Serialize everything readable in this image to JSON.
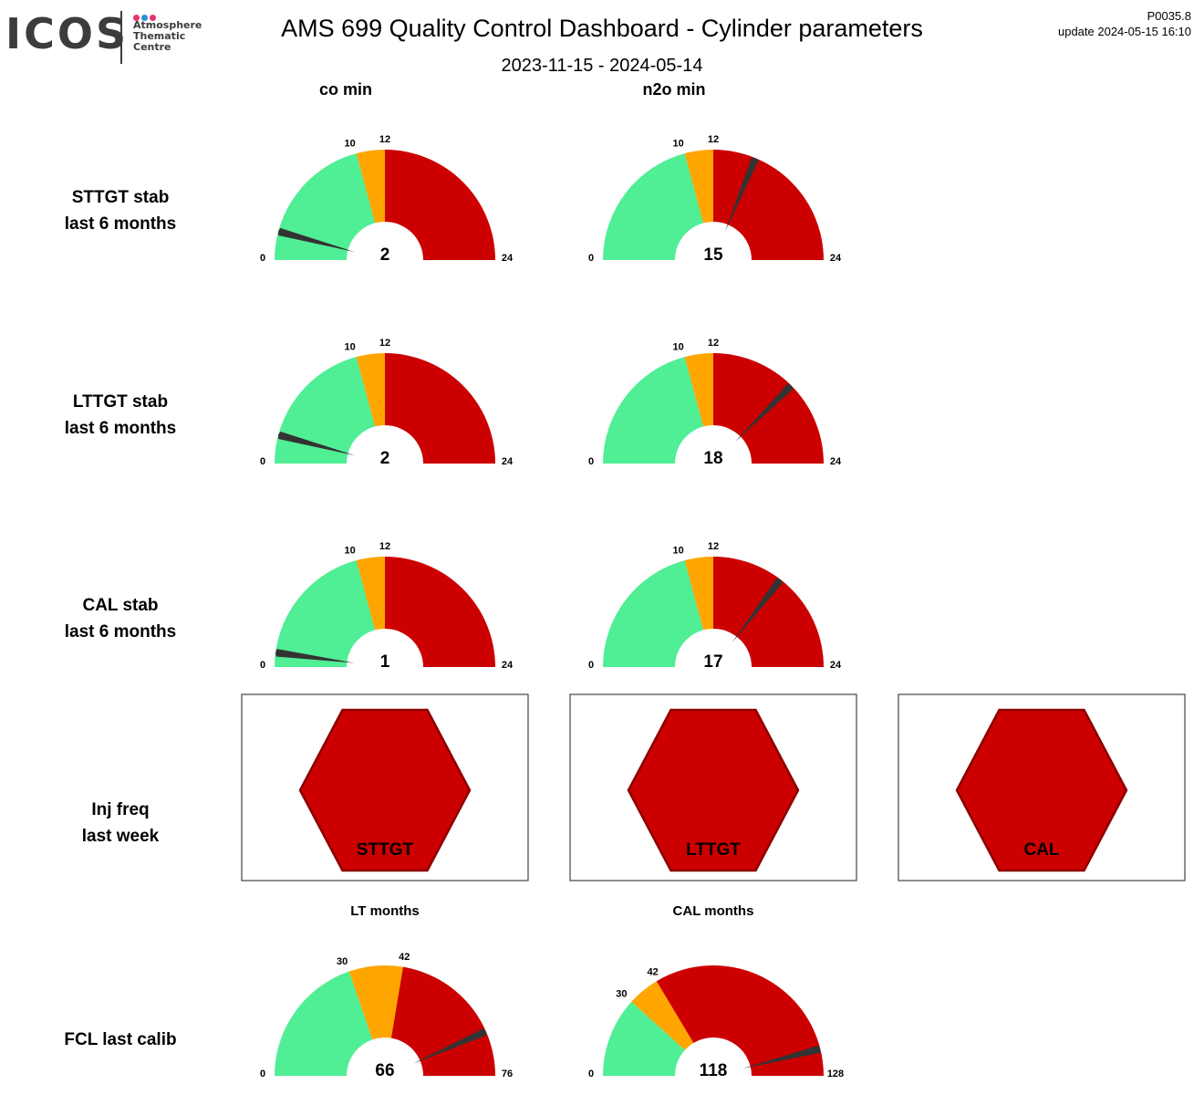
{
  "header": {
    "title": "AMS 699 Quality Control Dashboard - Cylinder parameters",
    "date_range": "2023-11-15 - 2024-05-14",
    "version": "P0035.8",
    "update": "update  2024-05-15 16:10"
  },
  "logo": {
    "text": "ICOS",
    "subtitle_lines": [
      "Atmosphere",
      "Thematic",
      "Centre"
    ],
    "dot_colors": [
      "#e6336f",
      "#2b8fd6",
      "#e6336f"
    ]
  },
  "colors": {
    "good": "#50ee95",
    "warning": "#ffa500",
    "bad": "#cc0000",
    "needle": "#333333",
    "hexagon_stroke": "#8b0000"
  },
  "chart_data": {
    "type": "gauge",
    "column_headers": [
      "co min",
      "n2o min"
    ],
    "row_labels": [
      [
        "STTGT stab",
        "last 6 months"
      ],
      [
        "LTTGT stab",
        "last 6 months"
      ],
      [
        "CAL stab",
        "last 6 months"
      ],
      [
        "Inj freq",
        "last week"
      ],
      [
        "FCL last calib"
      ]
    ],
    "gauges": [
      {
        "row": 0,
        "col": 0,
        "min": 0,
        "max": 24,
        "thresholds": [
          10,
          12
        ],
        "value": 2
      },
      {
        "row": 0,
        "col": 1,
        "min": 0,
        "max": 24,
        "thresholds": [
          10,
          12
        ],
        "value": 15
      },
      {
        "row": 1,
        "col": 0,
        "min": 0,
        "max": 24,
        "thresholds": [
          10,
          12
        ],
        "value": 2
      },
      {
        "row": 1,
        "col": 1,
        "min": 0,
        "max": 24,
        "thresholds": [
          10,
          12
        ],
        "value": 18
      },
      {
        "row": 2,
        "col": 0,
        "min": 0,
        "max": 24,
        "thresholds": [
          10,
          12
        ],
        "value": 1
      },
      {
        "row": 2,
        "col": 1,
        "min": 0,
        "max": 24,
        "thresholds": [
          10,
          12
        ],
        "value": 17
      },
      {
        "row": 4,
        "col": 0,
        "title": "LT months",
        "min": 0,
        "max": 76,
        "thresholds": [
          30,
          42
        ],
        "value": 66
      },
      {
        "row": 4,
        "col": 1,
        "title": "CAL months",
        "min": 0,
        "max": 128,
        "thresholds": [
          30,
          42
        ],
        "value": 118
      }
    ],
    "status_indicators": [
      {
        "label": "STTGT",
        "status": "bad"
      },
      {
        "label": "LTTGT",
        "status": "bad"
      },
      {
        "label": "CAL",
        "status": "bad"
      }
    ]
  }
}
